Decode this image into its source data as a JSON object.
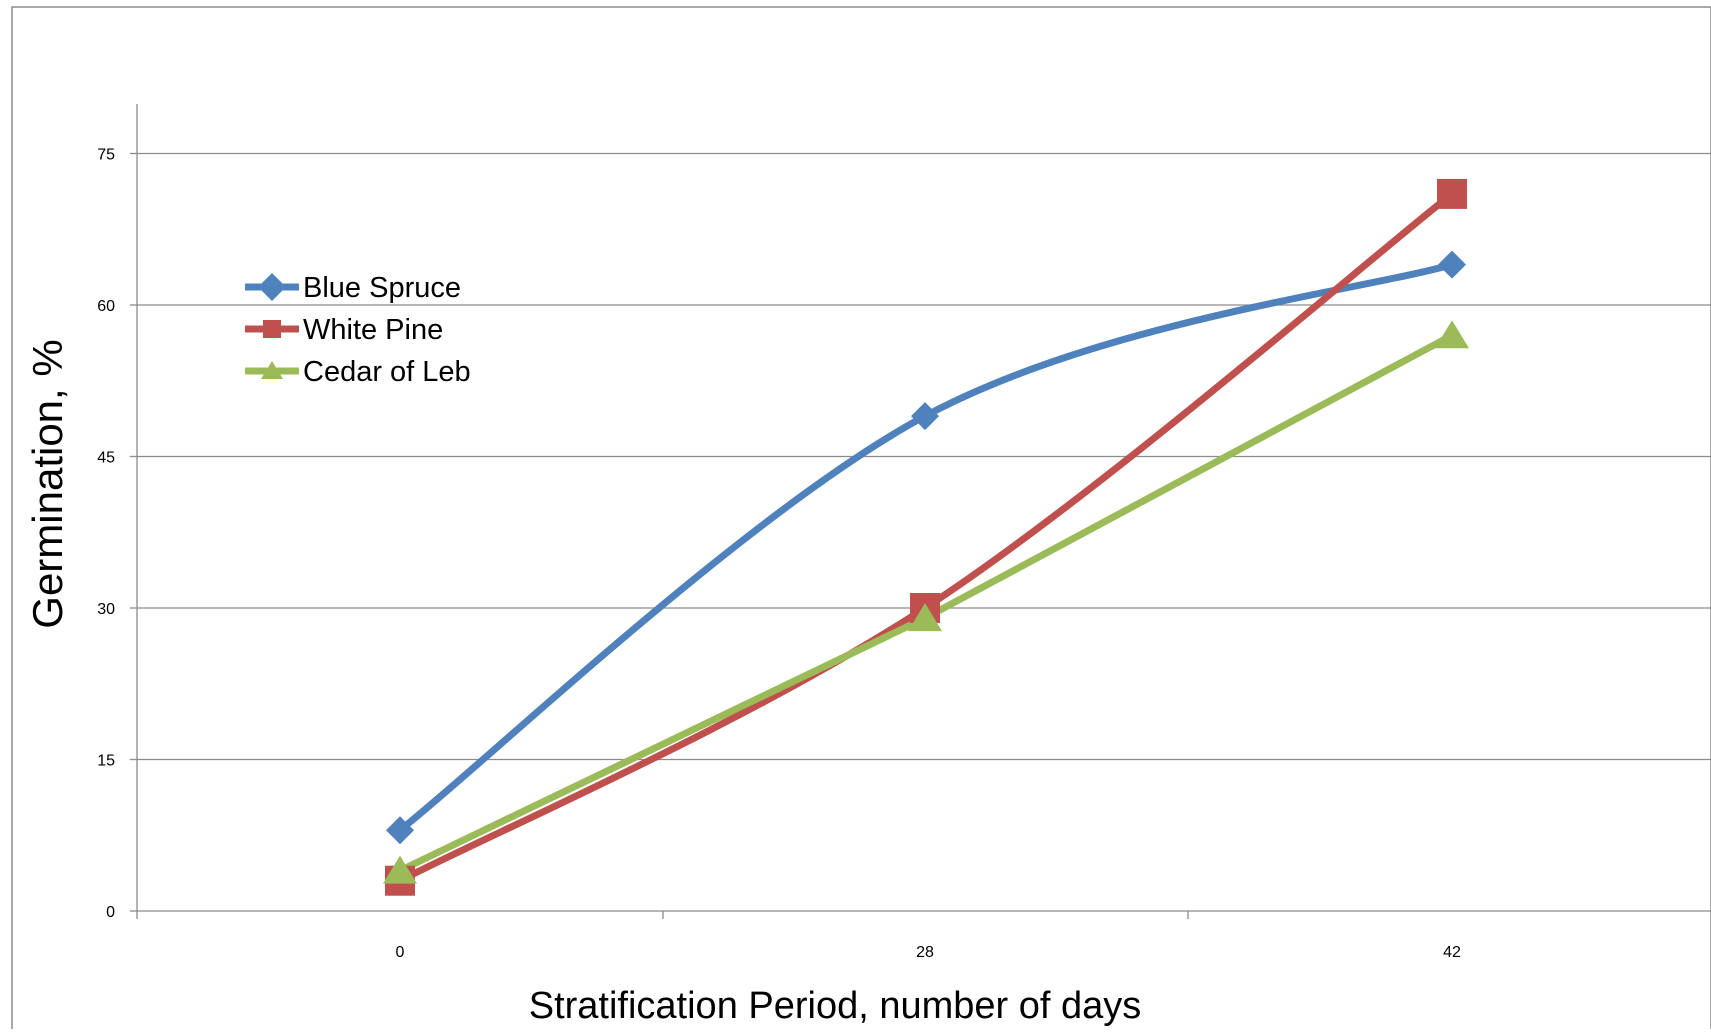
{
  "chart_data": {
    "type": "line",
    "title": "",
    "xlabel": "Stratification Period, number of days",
    "ylabel": "Germination, %",
    "categories": [
      "0",
      "28",
      "42"
    ],
    "ylim": [
      0,
      80
    ],
    "yticks": [
      0,
      15,
      30,
      45,
      60,
      75
    ],
    "grid": "horizontal",
    "legend_position": "upper-left",
    "series": [
      {
        "name": "Blue Spruce",
        "values": [
          8,
          49,
          64
        ],
        "color": "#4F81BD",
        "marker": "diamond",
        "smooth": true
      },
      {
        "name": "White Pine",
        "values": [
          3,
          30,
          71
        ],
        "color": "#C0504D",
        "marker": "square",
        "smooth": true
      },
      {
        "name": "Cedar of Leb",
        "values": [
          4,
          29,
          57
        ],
        "color": "#9BBB59",
        "marker": "triangle",
        "smooth": false
      }
    ]
  }
}
